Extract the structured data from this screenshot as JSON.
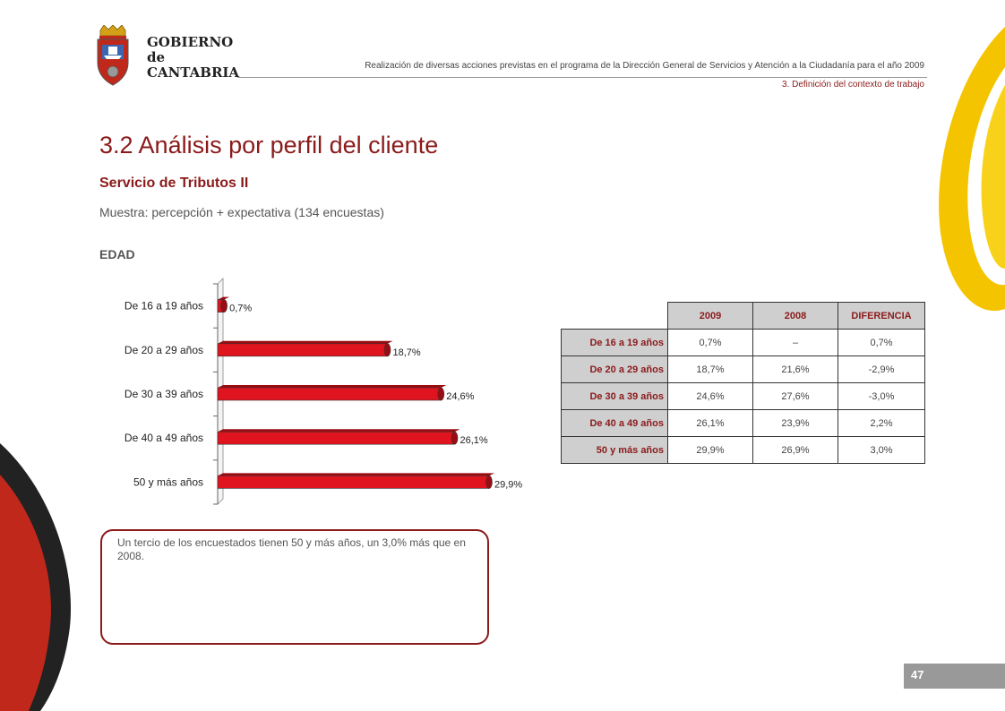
{
  "logo": {
    "line1": "GOBIERNO",
    "line2": "de",
    "line3": "CANTABRIA"
  },
  "header": {
    "title": "Realización de diversas acciones previstas en el programa de la Dirección General de Servicios y Atención a la Ciudadanía para el año 2009",
    "section": "3. Definición del contexto de trabajo"
  },
  "page": {
    "title": "3.2 Análisis por perfil del cliente",
    "subtitle": "Servicio de Tributos II",
    "sample": "Muestra: percepción + expectativa (134 encuestas)",
    "section_label": "EDAD",
    "number": "47"
  },
  "colors": {
    "accent": "#8b1a1a",
    "bar": "#e0141e",
    "bar_dark": "#9a0c12",
    "table_header_bg": "#cfcfcf"
  },
  "chart_data": {
    "type": "bar",
    "orientation": "horizontal",
    "categories": [
      "De 16 a 19 años",
      "De 20 a 29 años",
      "De 30 a 39 años",
      "De 40 a 49 años",
      "50 y más años"
    ],
    "values": [
      0.7,
      18.7,
      24.6,
      26.1,
      29.9
    ],
    "value_labels": [
      "0,7%",
      "18,7%",
      "24,6%",
      "26,1%",
      "29,9%"
    ],
    "xlim": [
      0,
      30
    ],
    "unit": "%"
  },
  "table": {
    "headers": [
      "2009",
      "2008",
      "DIFERENCIA"
    ],
    "rows": [
      {
        "label": "De 16 a 19 años",
        "v2009": "0,7%",
        "v2008": "–",
        "diff": "0,7%"
      },
      {
        "label": "De 20 a 29 años",
        "v2009": "18,7%",
        "v2008": "21,6%",
        "diff": "-2,9%"
      },
      {
        "label": "De 30 a 39 años",
        "v2009": "24,6%",
        "v2008": "27,6%",
        "diff": "-3,0%"
      },
      {
        "label": "De 40 a 49 años",
        "v2009": "26,1%",
        "v2008": "23,9%",
        "diff": "2,2%"
      },
      {
        "label": "50 y más años",
        "v2009": "29,9%",
        "v2008": "26,9%",
        "diff": "3,0%"
      }
    ]
  },
  "note": {
    "text": "Un tercio de los encuestados tienen 50 y más años, un 3,0% más que en 2008."
  }
}
